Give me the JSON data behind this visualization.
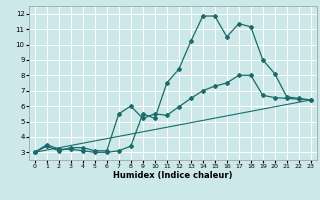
{
  "xlabel": "Humidex (Indice chaleur)",
  "bg_color": "#cce8e8",
  "grid_color": "#ffffff",
  "line_color": "#1a6b6b",
  "xlim": [
    -0.5,
    23.5
  ],
  "ylim": [
    2.5,
    12.5
  ],
  "xticks": [
    0,
    1,
    2,
    3,
    4,
    5,
    6,
    7,
    8,
    9,
    10,
    11,
    12,
    13,
    14,
    15,
    16,
    17,
    18,
    19,
    20,
    21,
    22,
    23
  ],
  "yticks": [
    3,
    4,
    5,
    6,
    7,
    8,
    9,
    10,
    11,
    12
  ],
  "curve1_x": [
    0,
    1,
    2,
    3,
    4,
    5,
    6,
    7,
    8,
    9,
    10,
    11,
    12,
    13,
    14,
    15,
    16,
    17,
    18,
    19,
    20,
    21,
    22,
    23
  ],
  "curve1_y": [
    3.0,
    3.5,
    3.2,
    3.2,
    3.1,
    3.0,
    3.0,
    3.1,
    3.4,
    5.5,
    5.2,
    7.5,
    8.4,
    10.2,
    11.85,
    11.85,
    10.5,
    11.35,
    11.15,
    9.0,
    8.1,
    6.6,
    6.5,
    6.4
  ],
  "curve2_x": [
    0,
    1,
    2,
    3,
    4,
    5,
    6,
    7,
    8,
    9,
    10,
    11,
    12,
    13,
    14,
    15,
    16,
    17,
    18,
    19,
    20,
    21,
    22,
    23
  ],
  "curve2_y": [
    3.0,
    3.4,
    3.1,
    3.3,
    3.3,
    3.1,
    3.1,
    5.5,
    6.0,
    5.2,
    5.5,
    5.4,
    5.95,
    6.5,
    7.0,
    7.3,
    7.5,
    8.0,
    8.0,
    6.7,
    6.55,
    6.5,
    6.45,
    6.4
  ],
  "curve3_x": [
    0,
    23
  ],
  "curve3_y": [
    3.0,
    6.4
  ]
}
